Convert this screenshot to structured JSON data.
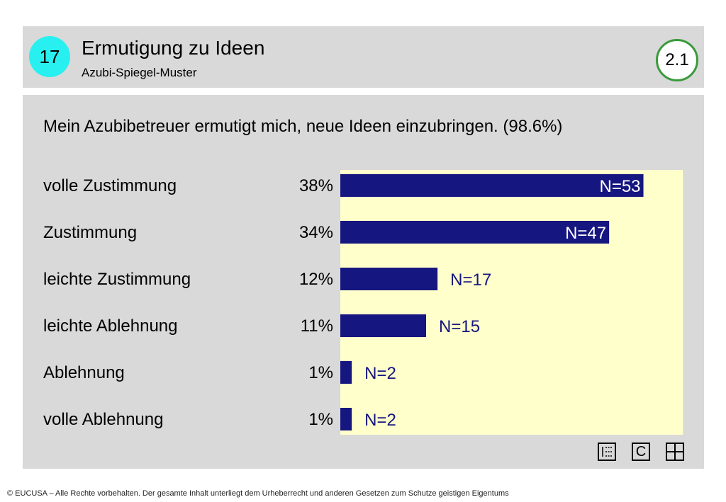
{
  "header": {
    "number": "17",
    "title": "Ermutigung zu Ideen",
    "subtitle": "Azubi-Spiegel-Muster",
    "version": "2.1"
  },
  "chart_data": {
    "type": "bar",
    "title": "Mein Azubibetreuer ermutigt mich, neue Ideen einzubringen. (98.6%)",
    "categories": [
      "volle Zustimmung",
      "Zustimmung",
      "leichte Zustimmung",
      "leichte Ablehnung",
      "Ablehnung",
      "volle Ablehnung"
    ],
    "percent_labels": [
      "38%",
      "34%",
      "12%",
      "11%",
      "1%",
      "1%"
    ],
    "values": [
      53,
      47,
      17,
      15,
      2,
      2
    ],
    "value_labels": [
      "N=53",
      "N=47",
      "N=17",
      "N=15",
      "N=2",
      "N=2"
    ],
    "xlim": [
      0,
      60
    ],
    "bar_color": "#161680",
    "background_color": "#ffffcc"
  },
  "toolbar": {
    "icons": [
      "list-icon",
      "c-icon",
      "grid-icon"
    ],
    "c_label": "C"
  },
  "footer": {
    "text": "© EUCUSA – Alle Rechte vorbehalten. Der gesamte Inhalt unterliegt dem Urheberrecht und anderen Gesetzen zum Schutze geistigen Eigentums"
  }
}
